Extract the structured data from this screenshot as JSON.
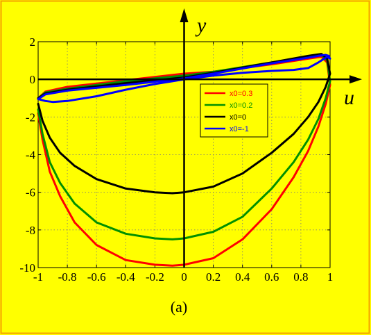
{
  "colors": {
    "background": "#ffff00",
    "frame": "#f4a300",
    "plot_area": "#ffff00",
    "grid": "#7a7a7a"
  },
  "caption": "(a)",
  "chart_data": {
    "type": "line",
    "title": "",
    "xlabel": "u",
    "ylabel": "y",
    "xlim": [
      -1,
      1
    ],
    "ylim": [
      -10,
      2
    ],
    "xticks": [
      -1,
      -0.8,
      -0.6,
      -0.4,
      -0.2,
      0,
      0.2,
      0.4,
      0.6,
      0.8,
      1
    ],
    "xtick_labels": [
      "-1",
      "-0.8",
      "-0.6",
      "-0.4",
      "-0.2",
      "0",
      "0.2",
      "0.4",
      "0.6",
      "0.8",
      "1"
    ],
    "yticks": [
      2,
      0,
      -2,
      -4,
      -6,
      -8,
      -10
    ],
    "ytick_labels": [
      "2",
      "0",
      "-2",
      "-4",
      "-6",
      "-8",
      "-10"
    ],
    "grid": true,
    "legend_position": "upper-right",
    "series": [
      {
        "name": "x0=0.3",
        "color": "#ff0000",
        "x": [
          -1,
          -0.97,
          -0.92,
          -0.85,
          -0.75,
          -0.6,
          -0.4,
          -0.2,
          -0.08,
          0,
          0.2,
          0.4,
          0.6,
          0.75,
          0.85,
          0.92,
          0.97,
          1,
          0.98,
          0.94,
          0.85,
          0.6,
          0.2,
          0,
          -0.4,
          -0.8,
          -0.95,
          -1
        ],
        "y": [
          -1.8,
          -3.2,
          -4.9,
          -6.2,
          -7.6,
          -8.8,
          -9.6,
          -9.85,
          -9.9,
          -9.85,
          -9.5,
          -8.5,
          -6.9,
          -5.2,
          -3.8,
          -2.5,
          -1.3,
          -0.3,
          0.9,
          1.2,
          1.1,
          0.8,
          0.4,
          0.3,
          -0.05,
          -0.4,
          -0.65,
          -1
        ]
      },
      {
        "name": "x0=0.2",
        "color": "#009000",
        "x": [
          -1,
          -0.97,
          -0.92,
          -0.85,
          -0.75,
          -0.6,
          -0.4,
          -0.2,
          -0.08,
          0,
          0.2,
          0.4,
          0.6,
          0.75,
          0.85,
          0.92,
          0.97,
          1,
          0.98,
          0.94,
          0.85,
          0.6,
          0.2,
          0,
          -0.4,
          -0.8,
          -0.95,
          -1
        ],
        "y": [
          -1.6,
          -2.9,
          -4.4,
          -5.5,
          -6.6,
          -7.6,
          -8.2,
          -8.45,
          -8.5,
          -8.45,
          -8.1,
          -7.3,
          -5.8,
          -4.4,
          -3.2,
          -2.1,
          -1.0,
          -0.1,
          1.0,
          1.3,
          1.2,
          0.9,
          0.4,
          0.2,
          -0.1,
          -0.5,
          -0.7,
          -1
        ]
      },
      {
        "name": "x0=0",
        "color": "#000000",
        "x": [
          -1,
          -0.97,
          -0.92,
          -0.85,
          -0.75,
          -0.6,
          -0.4,
          -0.2,
          -0.08,
          0,
          0.2,
          0.4,
          0.6,
          0.75,
          0.85,
          0.92,
          0.97,
          1,
          0.98,
          0.94,
          0.85,
          0.6,
          0.2,
          0,
          -0.4,
          -0.8,
          -0.95,
          -1
        ],
        "y": [
          -1.3,
          -2.2,
          -3.1,
          -3.9,
          -4.6,
          -5.3,
          -5.8,
          -6.0,
          -6.05,
          -6.0,
          -5.7,
          -5.0,
          -3.9,
          -2.9,
          -2.0,
          -1.2,
          -0.4,
          0.3,
          1.1,
          1.35,
          1.25,
          0.9,
          0.35,
          0.1,
          -0.2,
          -0.55,
          -0.75,
          -1
        ]
      },
      {
        "name": "x0=-1",
        "color": "#0000ff",
        "x": [
          -1,
          -0.95,
          -0.9,
          -0.8,
          -0.6,
          -0.4,
          -0.2,
          0,
          0.2,
          0.4,
          0.6,
          0.75,
          0.85,
          0.92,
          0.96,
          0.98,
          1,
          0.99,
          0.97,
          0.92,
          0.85,
          0.6,
          0.2,
          0,
          -0.4,
          -0.8,
          -0.95,
          -1
        ],
        "y": [
          -1.05,
          -1.15,
          -1.2,
          -1.15,
          -0.9,
          -0.55,
          -0.25,
          0.0,
          0.2,
          0.35,
          0.45,
          0.5,
          0.6,
          0.9,
          1.1,
          1.2,
          1.1,
          1.25,
          1.3,
          1.25,
          1.15,
          0.85,
          0.3,
          0.05,
          -0.3,
          -0.6,
          -0.8,
          -1.05
        ]
      }
    ]
  }
}
